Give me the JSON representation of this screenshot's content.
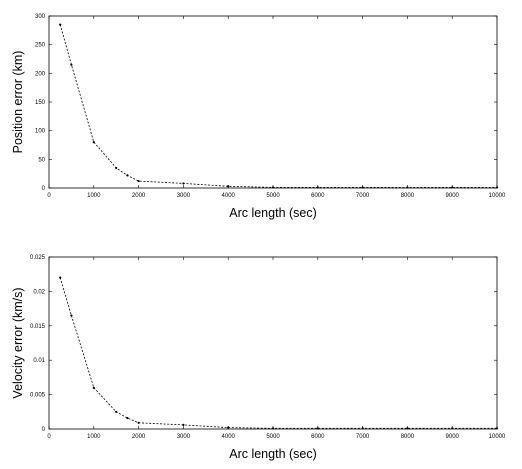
{
  "chart_data": [
    {
      "type": "line",
      "title": "",
      "xlabel": "Arc length (sec)",
      "ylabel": "Position error (km)",
      "xlim": [
        0,
        10000
      ],
      "ylim": [
        0,
        300
      ],
      "xticks": [
        "0",
        "1000",
        "2000",
        "3000",
        "4000",
        "5000",
        "6000",
        "7000",
        "8000",
        "9000",
        "10000"
      ],
      "yticks": [
        "0",
        "50",
        "100",
        "150",
        "200",
        "250",
        "300"
      ],
      "grid": false,
      "series": [
        {
          "x": [
            250,
            500,
            1000,
            1500,
            1750,
            2000,
            3000,
            4000,
            5000,
            6000,
            7000,
            8000,
            9000,
            10000
          ],
          "y": [
            285,
            215,
            80,
            35,
            22,
            12,
            8,
            3,
            1,
            1,
            1,
            1,
            1,
            1
          ]
        }
      ]
    },
    {
      "type": "line",
      "title": "",
      "xlabel": "Arc length (sec)",
      "ylabel": "Velocity error (km/s)",
      "xlim": [
        0,
        10000
      ],
      "ylim": [
        0,
        0.025
      ],
      "xticks": [
        "0",
        "1000",
        "2000",
        "3000",
        "4000",
        "5000",
        "6000",
        "7000",
        "8000",
        "9000",
        "10000"
      ],
      "yticks": [
        "0",
        "0.005",
        "0.01",
        "0.015",
        "0.02",
        "0.025"
      ],
      "grid": false,
      "series": [
        {
          "x": [
            250,
            500,
            1000,
            1500,
            1750,
            2000,
            3000,
            4000,
            5000,
            6000,
            7000,
            8000,
            9000,
            10000
          ],
          "y": [
            0.022,
            0.0165,
            0.006,
            0.0025,
            0.0016,
            0.0009,
            0.0006,
            0.0002,
            0.0001,
            0.0001,
            0.0001,
            0.0001,
            0.0001,
            0.0001
          ]
        }
      ]
    }
  ]
}
